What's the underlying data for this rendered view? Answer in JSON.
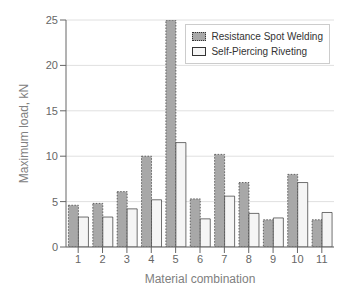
{
  "chart_data": {
    "type": "bar",
    "categories": [
      "1",
      "2",
      "3",
      "4",
      "5",
      "6",
      "7",
      "8",
      "9",
      "10",
      "11"
    ],
    "series": [
      {
        "name": "Resistance Spot Welding",
        "color": "#a8a8a8",
        "values": [
          4.6,
          4.8,
          6.1,
          10.0,
          25.0,
          5.3,
          10.2,
          7.1,
          3.0,
          8.0,
          3.0
        ]
      },
      {
        "name": "Self-Piercing Riveting",
        "color": "#f5f5f5",
        "values": [
          3.3,
          3.3,
          4.2,
          5.2,
          11.5,
          3.1,
          5.6,
          3.7,
          3.2,
          7.1,
          3.8
        ]
      }
    ],
    "xlabel": "Material combination",
    "ylabel": "Maximum load, kN",
    "ylim": [
      0,
      25
    ],
    "yticks": [
      0,
      5,
      10,
      15,
      20,
      25
    ],
    "grid": true,
    "legend": "upper right"
  }
}
